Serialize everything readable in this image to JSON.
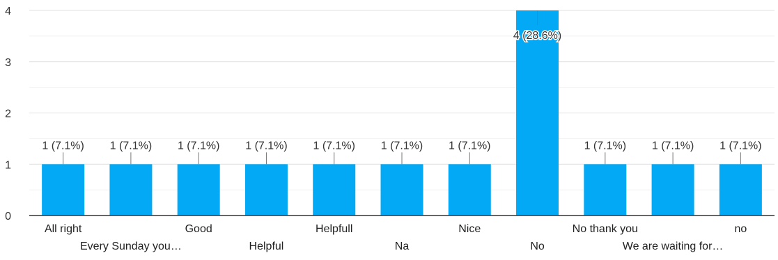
{
  "chart_data": {
    "type": "bar",
    "categories": [
      "All right",
      "Every Sunday you…",
      "Good",
      "Helpful",
      "Helpfull",
      "Na",
      "Nice",
      "No",
      "No thank you",
      "We are waiting for…",
      "no"
    ],
    "values": [
      1,
      1,
      1,
      1,
      1,
      1,
      1,
      4,
      1,
      1,
      1
    ],
    "data_labels": [
      "1 (7.1%)",
      "1 (7.1%)",
      "1 (7.1%)",
      "1 (7.1%)",
      "1 (7.1%)",
      "1 (7.1%)",
      "1 (7.1%)",
      "4 (28.6%)",
      "1 (7.1%)",
      "1 (7.1%)",
      "1 (7.1%)"
    ],
    "yticks": [
      0,
      1,
      2,
      3,
      4
    ],
    "ylim": [
      0,
      4
    ],
    "grid": true,
    "bar_color": "#03a9f4",
    "grid_color": "#e8e8e8",
    "axis_color": "#333333",
    "title": "",
    "xlabel": "",
    "ylabel": ""
  }
}
